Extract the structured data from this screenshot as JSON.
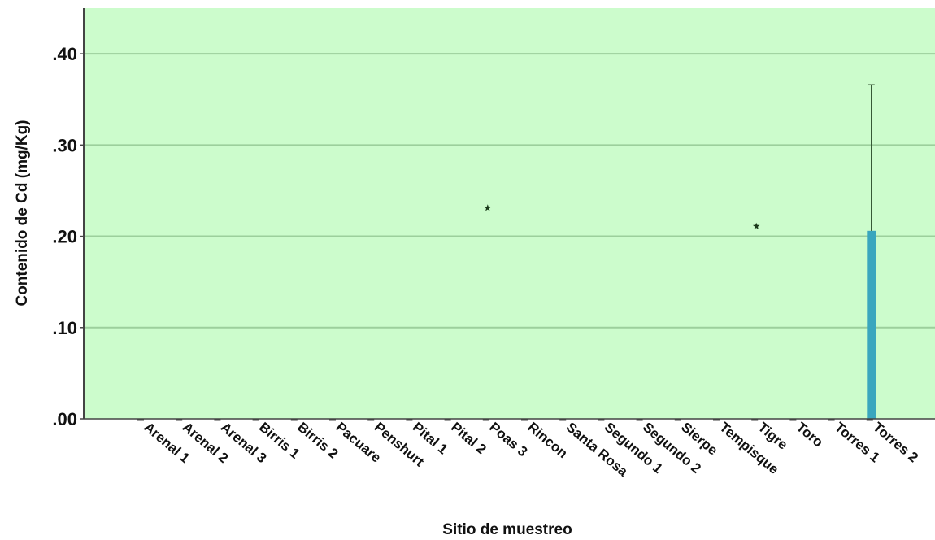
{
  "chart_data": {
    "type": "bar",
    "title": "",
    "xlabel": "Sitio de muestreo",
    "ylabel": "Contenido de Cd (mg/Kg)",
    "ylim": [
      0,
      0.45
    ],
    "yticks": [
      ".00",
      ".10",
      ".20",
      ".30",
      ".40"
    ],
    "grid": true,
    "categories": [
      "Arenal 1",
      "Arenal 2",
      "Arenal 3",
      "Birris 1",
      "Birris 2",
      "Pacuare",
      "Penshurt",
      "Pital 1",
      "Pital 2",
      "Poas 3",
      "Rincon",
      "Santa Rosa",
      "Segundo 1",
      "Segundo 2",
      "Sierpe",
      "Tempisque",
      "Tigre",
      "Toro",
      "Torres 1",
      "Torres 2"
    ],
    "values": [
      0,
      0,
      0,
      0,
      0,
      0,
      0,
      0,
      0,
      0,
      0,
      0,
      0,
      0,
      0,
      0,
      0,
      0,
      0,
      0.206
    ],
    "error_upper": [
      null,
      null,
      null,
      null,
      null,
      null,
      null,
      null,
      null,
      null,
      null,
      null,
      null,
      null,
      null,
      null,
      null,
      null,
      null,
      0.366
    ],
    "outliers": [
      {
        "category": "Poas 3",
        "value": 0.231,
        "marker": "star"
      },
      {
        "category": "Tigre",
        "value": 0.211,
        "marker": "star"
      }
    ]
  },
  "colors": {
    "plot_background": "#ccfccc",
    "gridline": "#9ccf9c",
    "bar": "#3aa6be",
    "axis": "#444444",
    "error_bar": "#2f4f2f",
    "marker": "#1a3a1a"
  }
}
